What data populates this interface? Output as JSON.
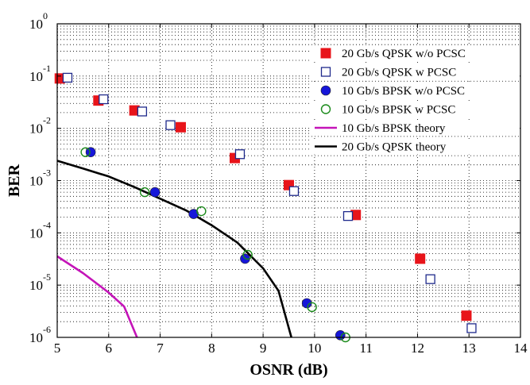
{
  "chart_data": {
    "type": "scatter",
    "xlabel": "OSNR (dB)",
    "ylabel": "BER",
    "xlim": [
      5,
      14
    ],
    "ylim_log10": [
      -6,
      0
    ],
    "y_scale": "log",
    "grid": "dotted major and minor",
    "legend_position": "top-right",
    "x_ticks": [
      "5",
      "6",
      "7",
      "8",
      "9",
      "10",
      "11",
      "12",
      "13",
      "14"
    ],
    "y_ticks": [
      {
        "base": "10",
        "exp": "0"
      },
      {
        "base": "10",
        "exp": "-1"
      },
      {
        "base": "10",
        "exp": "-2"
      },
      {
        "base": "10",
        "exp": "-3"
      },
      {
        "base": "10",
        "exp": "-4"
      },
      {
        "base": "10",
        "exp": "-5"
      },
      {
        "base": "10",
        "exp": "-6"
      }
    ],
    "series": [
      {
        "name": "20 Gb/s QPSK w/o PCSC",
        "marker": "square-filled",
        "color": "#e8141a",
        "points": [
          [
            5.05,
            0.09
          ],
          [
            5.8,
            0.034
          ],
          [
            6.5,
            0.022
          ],
          [
            7.4,
            0.0105
          ],
          [
            8.45,
            0.0027
          ],
          [
            9.5,
            0.00082
          ],
          [
            10.8,
            0.00022
          ],
          [
            12.05,
            3.2e-05
          ],
          [
            12.95,
            2.6e-06
          ]
        ]
      },
      {
        "name": "20 Gb/s QPSK w PCSC",
        "marker": "square-open",
        "color": "#1f2a8c",
        "points": [
          [
            5.2,
            0.093
          ],
          [
            5.9,
            0.036
          ],
          [
            6.65,
            0.021
          ],
          [
            7.2,
            0.0115
          ],
          [
            8.55,
            0.0032
          ],
          [
            9.6,
            0.00063
          ],
          [
            10.65,
            0.00021
          ],
          [
            12.25,
            1.3e-05
          ],
          [
            13.05,
            1.5e-06
          ]
        ]
      },
      {
        "name": "10 Gb/s BPSK w/o PCSC",
        "marker": "circle-filled",
        "color": "#1616d9",
        "points": [
          [
            5.65,
            0.0035
          ],
          [
            6.9,
            0.0006
          ],
          [
            7.65,
            0.00023
          ],
          [
            8.65,
            3.2e-05
          ],
          [
            9.85,
            4.5e-06
          ],
          [
            10.5,
            1.1e-06
          ]
        ]
      },
      {
        "name": "10 Gb/s BPSK w PCSC",
        "marker": "circle-open",
        "color": "#1a8a1a",
        "points": [
          [
            5.55,
            0.0035
          ],
          [
            6.7,
            0.0006
          ],
          [
            7.8,
            0.00026
          ],
          [
            8.7,
            3.8e-05
          ],
          [
            9.95,
            3.8e-06
          ],
          [
            10.6,
            1e-06
          ]
        ]
      },
      {
        "name": "10 Gb/s BPSK theory",
        "marker": "line",
        "color": "#c414b8",
        "points": [
          [
            5.0,
            3.55e-05
          ],
          [
            5.5,
            1.7e-05
          ],
          [
            6.0,
            7.2e-06
          ],
          [
            6.3,
            3.9e-06
          ],
          [
            6.55,
            1e-06
          ]
        ]
      },
      {
        "name": "20 Gb/s QPSK theory",
        "marker": "line",
        "color": "#000000",
        "points": [
          [
            5.0,
            0.0024
          ],
          [
            5.5,
            0.0017
          ],
          [
            6.0,
            0.0012
          ],
          [
            6.5,
            0.00075
          ],
          [
            7.0,
            0.00045
          ],
          [
            7.5,
            0.00027
          ],
          [
            8.0,
            0.00014
          ],
          [
            8.5,
            6.5e-05
          ],
          [
            9.0,
            2.1e-05
          ],
          [
            9.3,
            7.8e-06
          ],
          [
            9.55,
            1e-06
          ]
        ]
      }
    ]
  }
}
